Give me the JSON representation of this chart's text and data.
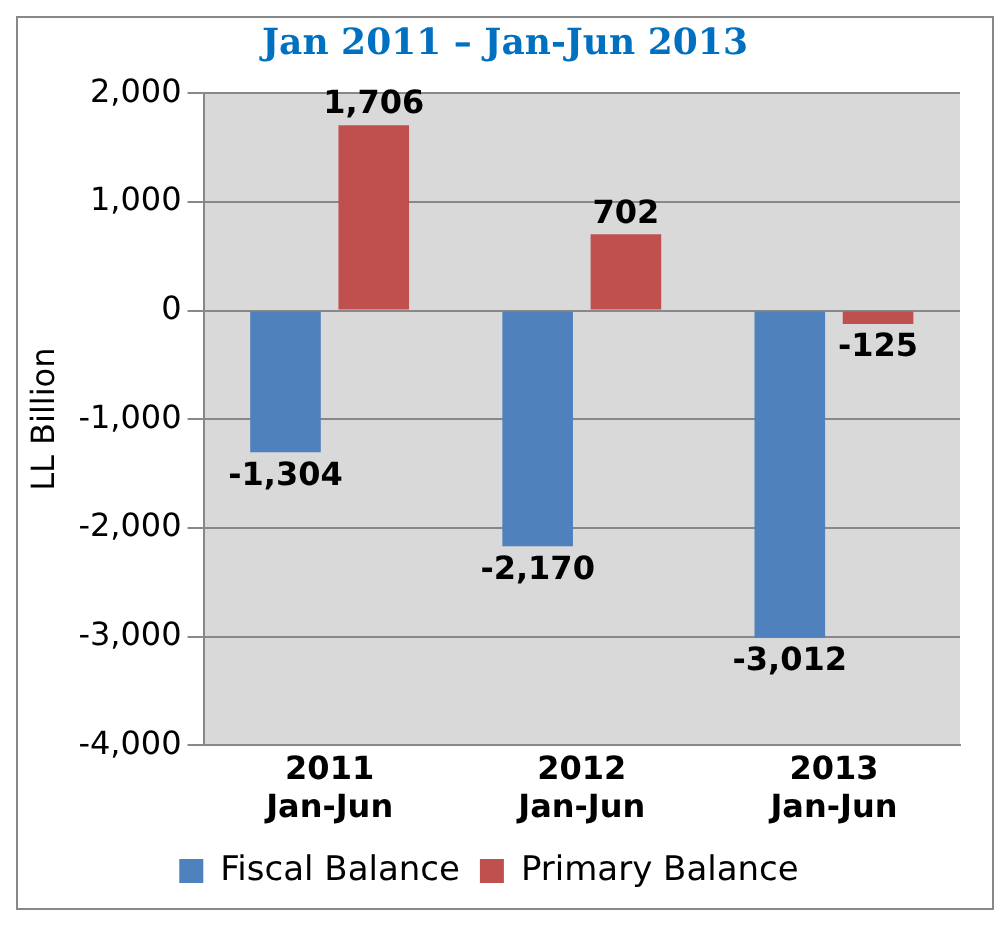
{
  "chart_data": {
    "type": "bar",
    "title": "Jan 2011 – Jan-Jun 2013",
    "ylabel": "LL Billion",
    "categories": [
      "2011\nJan-Jun",
      "2012\nJan-Jun",
      "2013\nJan-Jun"
    ],
    "series": [
      {
        "name": "Fiscal Balance",
        "color": "#4f81bd",
        "values": [
          -1304,
          -2170,
          -3012
        ],
        "value_labels": [
          "-1,304",
          "-2,170",
          "-3,012"
        ]
      },
      {
        "name": "Primary Balance",
        "color": "#c0504d",
        "values": [
          1706,
          702,
          -125
        ],
        "value_labels": [
          "1,706",
          "702",
          "-125"
        ]
      }
    ],
    "ylim": [
      -4000,
      2000
    ],
    "yticks": [
      {
        "value": -4000,
        "label": "-4,000"
      },
      {
        "value": -3000,
        "label": "-3,000"
      },
      {
        "value": -2000,
        "label": "-2,000"
      },
      {
        "value": -1000,
        "label": "-1,000"
      },
      0,
      {
        "value": 1000,
        "label": "1,000"
      },
      {
        "value": 2000,
        "label": "2,000"
      }
    ],
    "grid": "y",
    "legend": "bottom"
  }
}
